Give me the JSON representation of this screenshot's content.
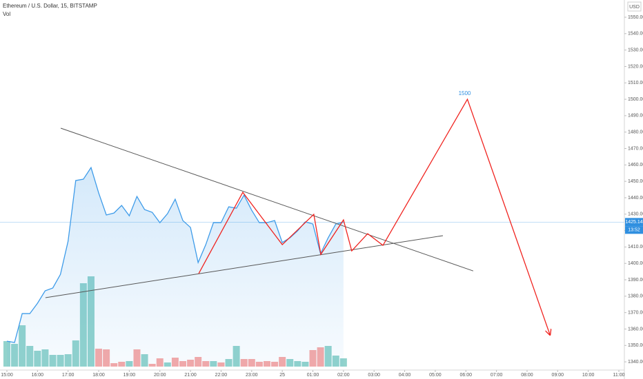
{
  "chart_data": {
    "type": "line",
    "title": "Ethereum / U.S. Dollar, 15, BITSTAMP",
    "volume_label": "Vol",
    "currency": "USD",
    "x": [
      15,
      15.25,
      15.5,
      15.75,
      16,
      16.25,
      16.5,
      16.75,
      17,
      17.25,
      17.5,
      17.75,
      18,
      18.25,
      18.5,
      18.75,
      19,
      19.25,
      19.5,
      19.75,
      20,
      20.25,
      20.5,
      20.75,
      21,
      21.25,
      21.5,
      21.75,
      22,
      22.25,
      22.5,
      22.75,
      23,
      23.25,
      23.5,
      23.75,
      24,
      24.25,
      24.5,
      24.75,
      25,
      25.25,
      25.5,
      25.75,
      26
    ],
    "series": [
      {
        "color": "#3d9be9",
        "values": [
          1352.6,
          1351.8,
          1369.4,
          1369.4,
          1375.7,
          1383.3,
          1385,
          1393.3,
          1413.5,
          1450.5,
          1451.3,
          1458.4,
          1442.9,
          1429.5,
          1430.7,
          1435.3,
          1429,
          1440.8,
          1432.8,
          1431.1,
          1424.8,
          1430.3,
          1439.1,
          1426.1,
          1421.9,
          1400.5,
          1411.4,
          1424.8,
          1424.8,
          1434.5,
          1433.6,
          1441.6,
          1432.4,
          1424.8,
          1424.8,
          1426.1,
          1412.7,
          1415.6,
          1419.8,
          1425.3,
          1424,
          1405.9,
          1415.6,
          1424,
          1425.14
        ]
      }
    ],
    "volume": [
      37,
      33,
      60,
      30,
      23,
      25,
      17,
      17,
      18,
      38,
      121,
      131,
      26,
      25,
      5,
      7,
      8,
      25,
      18,
      4,
      12,
      6,
      13,
      8,
      10,
      14,
      8,
      8,
      6,
      11,
      30,
      11,
      11,
      7,
      8,
      7,
      14,
      11,
      8,
      7,
      24,
      28,
      30,
      16,
      12
    ],
    "volume_up": [
      true,
      true,
      true,
      true,
      true,
      true,
      true,
      true,
      true,
      true,
      true,
      true,
      false,
      false,
      false,
      false,
      true,
      false,
      true,
      false,
      false,
      true,
      false,
      false,
      false,
      false,
      false,
      true,
      false,
      true,
      true,
      false,
      false,
      false,
      false,
      false,
      false,
      true,
      true,
      true,
      false,
      false,
      true,
      true,
      true
    ],
    "volume_colors": {
      "up": "#92d3cc",
      "down": "#f7a9a7"
    },
    "volume_lim": [
      0,
      140
    ],
    "last_price": 1425.14,
    "countdown": "13:52",
    "trend_lines": [
      {
        "color": "#555555",
        "x": [
          16.76,
          30.24
        ],
        "values": [
          1482.4,
          1395.4
        ]
      },
      {
        "color": "#555555",
        "x": [
          16.26,
          29.25
        ],
        "values": [
          1379.1,
          1416.9
        ]
      }
    ],
    "projection": {
      "color": "#f0221e",
      "x": [
        21.27,
        22.71,
        24.0,
        25.03,
        25.26,
        26.0,
        26.27,
        26.79,
        27.29,
        30.05,
        32.75
      ],
      "values": [
        1393.8,
        1443.3,
        1411.4,
        1429.9,
        1405.5,
        1426.5,
        1407.6,
        1418.1,
        1411,
        1500,
        1356.4
      ]
    },
    "annotation": {
      "text": "1500",
      "x": 30.05,
      "value": 1500
    },
    "xlim": [
      14.775,
      35.18
    ],
    "xticks": [
      {
        "value": 15,
        "label": "15:00"
      },
      {
        "value": 16,
        "label": "16:00"
      },
      {
        "value": 17,
        "label": "17:00"
      },
      {
        "value": 18,
        "label": "18:00"
      },
      {
        "value": 19,
        "label": "19:00"
      },
      {
        "value": 20,
        "label": "20:00"
      },
      {
        "value": 21,
        "label": "21:00"
      },
      {
        "value": 22,
        "label": "22:00"
      },
      {
        "value": 23,
        "label": "23:00"
      },
      {
        "value": 24,
        "label": "25"
      },
      {
        "value": 25,
        "label": "01:00"
      },
      {
        "value": 26,
        "label": "02:00"
      },
      {
        "value": 27,
        "label": "03:00"
      },
      {
        "value": 28,
        "label": "04:00"
      },
      {
        "value": 29,
        "label": "05:00"
      },
      {
        "value": 30,
        "label": "06:00"
      },
      {
        "value": 31,
        "label": "07:00"
      },
      {
        "value": 32,
        "label": "08:00"
      },
      {
        "value": 33,
        "label": "09:00"
      },
      {
        "value": 34,
        "label": "10:00"
      },
      {
        "value": 35,
        "label": "11:00"
      }
    ],
    "ylim": [
      1335,
      1560.5
    ],
    "yticks": [
      {
        "value": 1340,
        "label": "1340.00"
      },
      {
        "value": 1350,
        "label": "1350.00"
      },
      {
        "value": 1360,
        "label": "1360.00"
      },
      {
        "value": 1370,
        "label": "1370.00"
      },
      {
        "value": 1380,
        "label": "1380.00"
      },
      {
        "value": 1390,
        "label": "1390.00"
      },
      {
        "value": 1400,
        "label": "1400.00"
      },
      {
        "value": 1410,
        "label": "1410.00"
      },
      {
        "value": 1420,
        "label": "1420.00"
      },
      {
        "value": 1430,
        "label": "1430.00"
      },
      {
        "value": 1440,
        "label": "1440.00"
      },
      {
        "value": 1450,
        "label": "1450.00"
      },
      {
        "value": 1460,
        "label": "1460.00"
      },
      {
        "value": 1470,
        "label": "1470.00"
      },
      {
        "value": 1480,
        "label": "1480.00"
      },
      {
        "value": 1490,
        "label": "1490.00"
      },
      {
        "value": 1500,
        "label": "1500.00"
      },
      {
        "value": 1510,
        "label": "1510.00"
      },
      {
        "value": 1520,
        "label": "1520.00"
      },
      {
        "value": 1530,
        "label": "1530.00"
      },
      {
        "value": 1540,
        "label": "1540.00"
      },
      {
        "value": 1550,
        "label": "1550.00"
      }
    ],
    "grid": false
  }
}
